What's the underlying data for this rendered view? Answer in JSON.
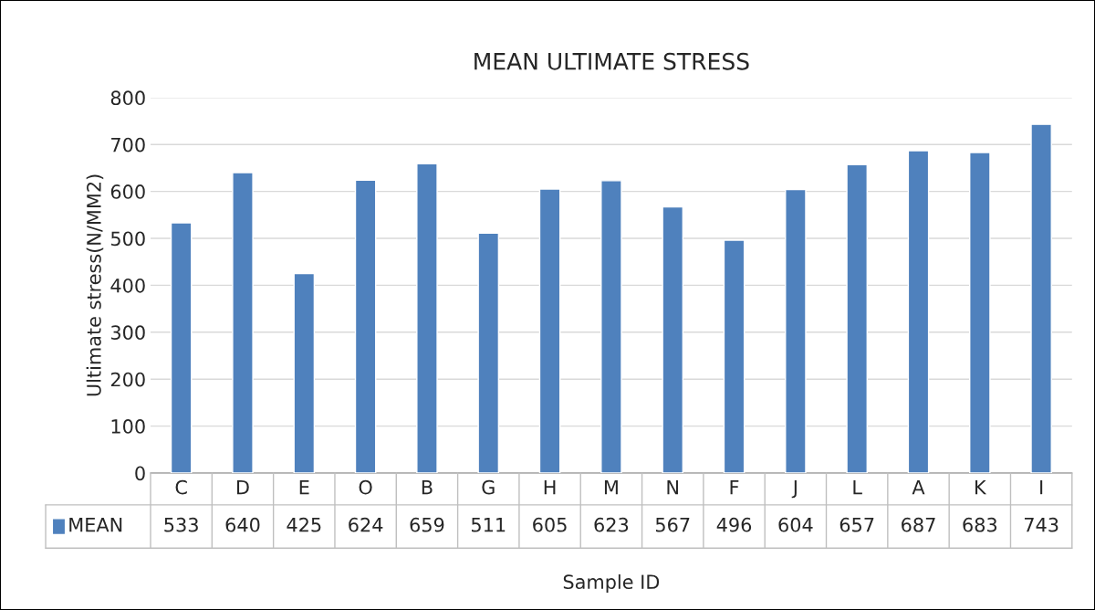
{
  "chart_data": {
    "type": "bar",
    "title": "MEAN ULTIMATE STRESS",
    "xlabel": "Sample ID",
    "ylabel": "Ultimate stress(N/MM2)",
    "categories": [
      "C",
      "D",
      "E",
      "O",
      "B",
      "G",
      "H",
      "M",
      "N",
      "F",
      "J",
      "L",
      "A",
      "K",
      "I"
    ],
    "series": [
      {
        "name": "MEAN",
        "color": "#4f81bd",
        "values": [
          533,
          640,
          425,
          624,
          659,
          511,
          605,
          623,
          567,
          496,
          604,
          657,
          687,
          683,
          743
        ]
      }
    ],
    "ylim": [
      0,
      800
    ],
    "yticks": [
      0,
      100,
      200,
      300,
      400,
      500,
      600,
      700,
      800
    ],
    "grid": "y",
    "legend": "bottom",
    "data_labels": true
  }
}
